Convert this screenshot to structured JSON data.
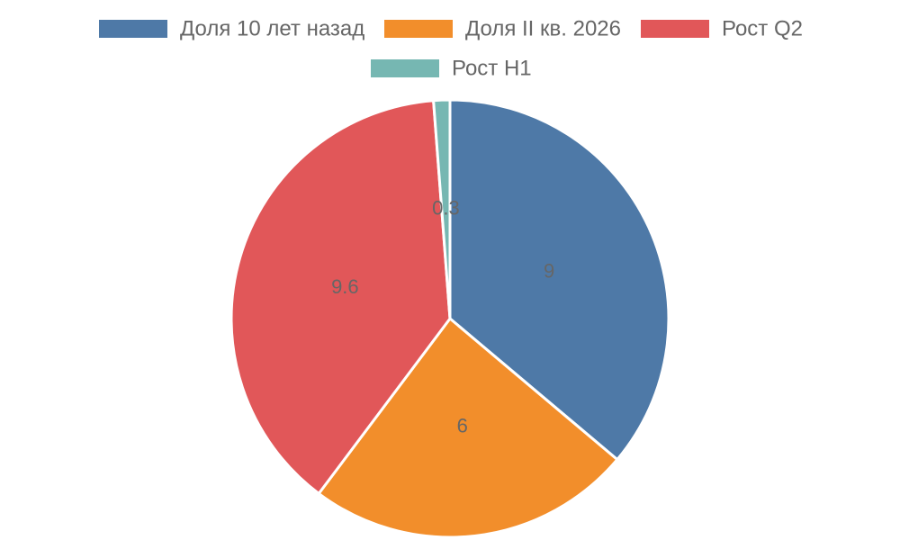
{
  "chart_data": {
    "type": "pie",
    "categories": [
      "Доля 10 лет назад",
      "Доля II кв. 2026",
      "Рост Q2",
      "Рост H1"
    ],
    "values": [
      9,
      6,
      9.6,
      0.3
    ],
    "colors": [
      "#4e79a7",
      "#f28e2b",
      "#e15759",
      "#76b7b2"
    ],
    "legend": "top"
  }
}
